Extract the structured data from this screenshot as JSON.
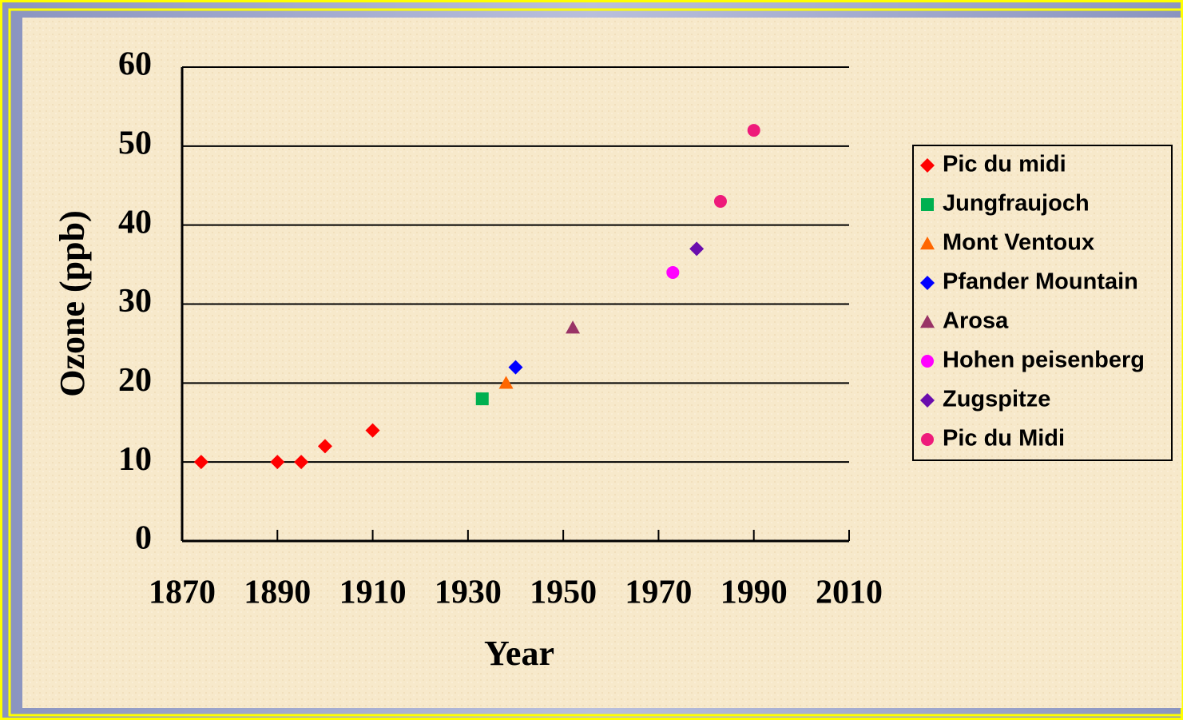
{
  "chart_data": {
    "type": "scatter",
    "x_label": "Year",
    "y_label": "Ozone (ppb)",
    "xlim": [
      1870,
      2010
    ],
    "xticks": [
      1870,
      1890,
      1910,
      1930,
      1950,
      1970,
      1990,
      2010
    ],
    "ylim": [
      0,
      60
    ],
    "yticks": [
      0,
      10,
      20,
      30,
      40,
      50,
      60
    ],
    "grid": true,
    "legend": "right",
    "series": [
      {
        "name": "Pic du midi",
        "color": "#ff0000",
        "marker": "diamond",
        "x": [
          1874,
          1890,
          1895,
          1900,
          1910
        ],
        "values": [
          10,
          10,
          10,
          12,
          14
        ]
      },
      {
        "name": "Jungfraujoch",
        "color": "#00b050",
        "marker": "square",
        "x": [
          1933
        ],
        "values": [
          18
        ]
      },
      {
        "name": "Mont Ventoux",
        "color": "#ff6600",
        "marker": "triangle",
        "x": [
          1938
        ],
        "values": [
          20
        ]
      },
      {
        "name": "Pfander Mountain",
        "color": "#0000ff",
        "marker": "diamond",
        "x": [
          1940
        ],
        "values": [
          22
        ]
      },
      {
        "name": "Arosa",
        "color": "#993366",
        "marker": "triangle",
        "x": [
          1952
        ],
        "values": [
          27
        ]
      },
      {
        "name": "Hohen peisenberg",
        "color": "#ff00ff",
        "marker": "circle",
        "x": [
          1973
        ],
        "values": [
          34
        ]
      },
      {
        "name": "Zugspitze",
        "color": "#6a0dad",
        "marker": "diamond",
        "x": [
          1978
        ],
        "values": [
          37
        ]
      },
      {
        "name": "Pic du Midi",
        "color": "#ee1a7a",
        "marker": "circle",
        "x": [
          1983,
          1990
        ],
        "values": [
          43,
          52
        ]
      }
    ]
  }
}
